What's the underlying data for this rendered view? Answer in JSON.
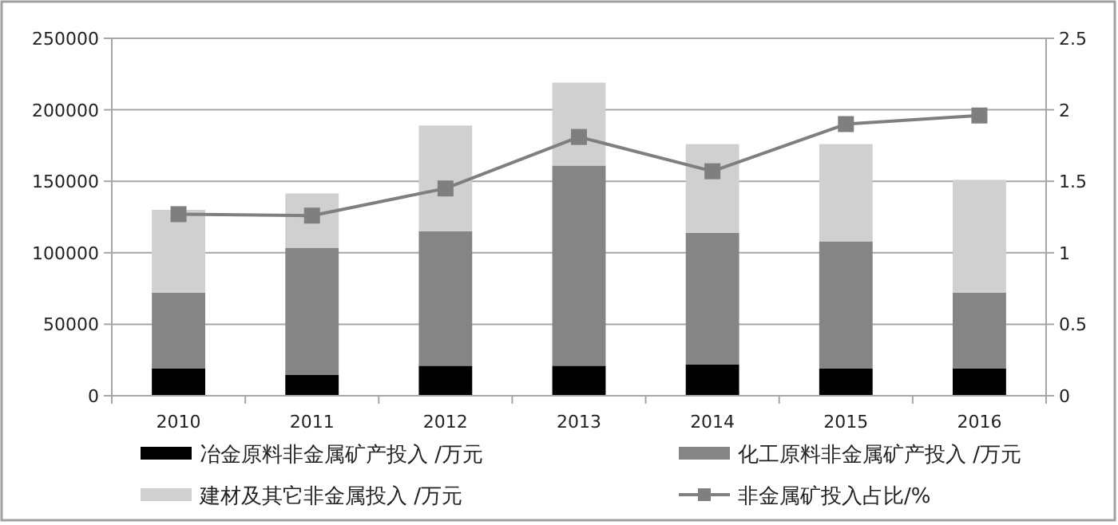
{
  "chart_data": {
    "type": "bar",
    "stacked": true,
    "categories": [
      "2010",
      "2011",
      "2012",
      "2013",
      "2014",
      "2015",
      "2016"
    ],
    "series": [
      {
        "name": "冶金原料非金属矿产投入 /万元",
        "color": "#000000",
        "values": [
          19000,
          14500,
          21000,
          21000,
          22000,
          19000,
          19000
        ]
      },
      {
        "name": "化工原料非金属矿产投入 /万元",
        "color": "#858585",
        "values": [
          53000,
          89000,
          94000,
          140000,
          92000,
          89000,
          53000
        ]
      },
      {
        "name": "建材及其它非金属投入 /万元",
        "color": "#d0d0d0",
        "values": [
          58000,
          38000,
          74000,
          58000,
          62000,
          68000,
          79000
        ]
      },
      {
        "name": "非金属矿投入占比/%",
        "color": "#7f7f7f",
        "type": "line",
        "axis": "y2",
        "marker": "square",
        "values": [
          1.27,
          1.26,
          1.45,
          1.81,
          1.57,
          1.9,
          1.96
        ]
      }
    ],
    "ylim": [
      0,
      250000
    ],
    "yticks": [
      0,
      50000,
      100000,
      150000,
      200000,
      250000
    ],
    "y2lim": [
      0,
      2.5
    ],
    "y2ticks": [
      0,
      0.5,
      1,
      1.5,
      2,
      2.5
    ],
    "grid": "y",
    "legend": "bottom"
  }
}
